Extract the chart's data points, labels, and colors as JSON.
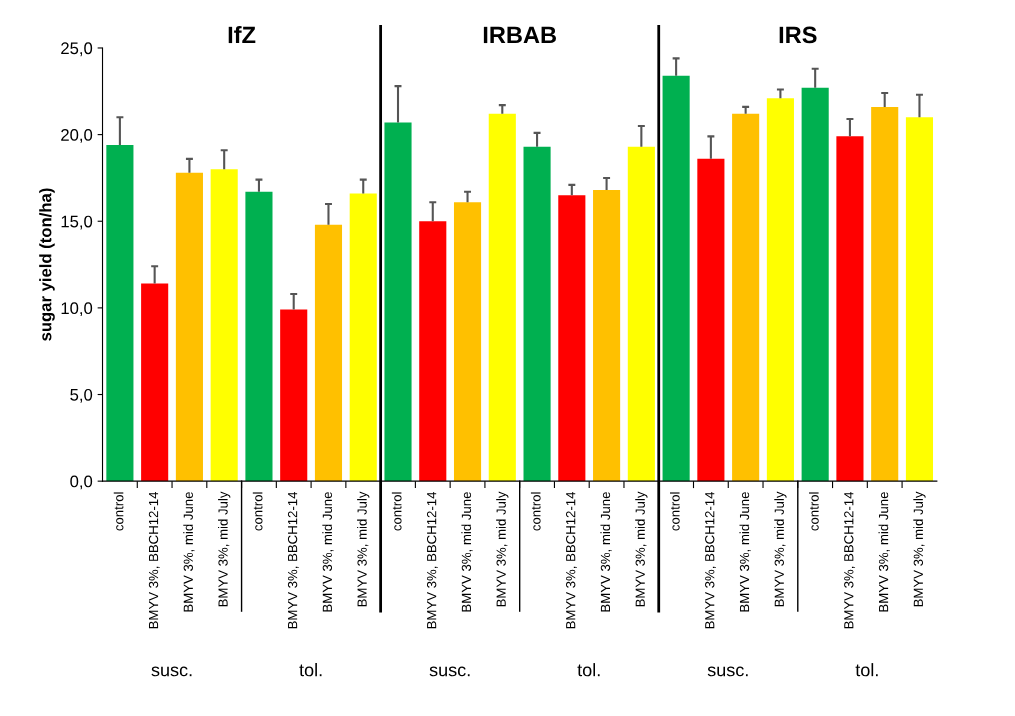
{
  "chart_data": {
    "type": "bar",
    "ylabel": "sugar yield (ton/ha)",
    "categories": [
      "control",
      "BMYV 3%, BBCH12-14",
      "BMYV 3%, mid June",
      "BMYV 3%, mid July",
      "control",
      "BMYV 3%, BBCH12-14",
      "BMYV 3%, mid June",
      "BMYV 3%, mid July",
      "control",
      "BMYV 3%, BBCH12-14",
      "BMYV 3%, mid June",
      "BMYV 3%, mid July",
      "control",
      "BMYV 3%, BBCH12-14",
      "BMYV 3%, mid June",
      "BMYV 3%, mid July",
      "control",
      "BMYV 3%, BBCH12-14",
      "BMYV 3%, mid June",
      "BMYV 3%, mid July",
      "control",
      "BMYV 3%, BBCH12-14",
      "BMYV 3%, mid June",
      "BMYV 3%, mid July"
    ],
    "values": [
      19.4,
      11.4,
      17.8,
      18.0,
      16.7,
      9.9,
      14.8,
      16.6,
      20.7,
      15.0,
      16.1,
      21.2,
      19.3,
      16.5,
      16.8,
      19.3,
      23.4,
      18.6,
      21.2,
      22.1,
      22.7,
      19.9,
      21.6,
      21.0
    ],
    "errors": [
      [
        19.4,
        21.0
      ],
      [
        11.4,
        12.4
      ],
      [
        17.8,
        18.6
      ],
      [
        18.0,
        19.1
      ],
      [
        16.7,
        17.4
      ],
      [
        9.9,
        10.8
      ],
      [
        14.8,
        16.0
      ],
      [
        16.6,
        17.4
      ],
      [
        20.7,
        22.8
      ],
      [
        15.0,
        16.1
      ],
      [
        16.1,
        16.7
      ],
      [
        21.2,
        21.7
      ],
      [
        19.3,
        20.1
      ],
      [
        16.5,
        17.1
      ],
      [
        16.8,
        17.5
      ],
      [
        19.3,
        20.5
      ],
      [
        23.4,
        24.4
      ],
      [
        18.6,
        19.9
      ],
      [
        21.2,
        21.6
      ],
      [
        22.1,
        22.6
      ],
      [
        22.7,
        23.8
      ],
      [
        19.9,
        20.9
      ],
      [
        21.6,
        22.4
      ],
      [
        21.0,
        22.3
      ]
    ],
    "colors": [
      "#00b050",
      "#ff0000",
      "#ffc000",
      "#ffff00",
      "#00b050",
      "#ff0000",
      "#ffc000",
      "#ffff00",
      "#00b050",
      "#ff0000",
      "#ffc000",
      "#ffff00",
      "#00b050",
      "#ff0000",
      "#ffc000",
      "#ffff00",
      "#00b050",
      "#ff0000",
      "#ffc000",
      "#ffff00",
      "#00b050",
      "#ff0000",
      "#ffc000",
      "#ffff00"
    ],
    "ylim": [
      0,
      25
    ],
    "yticks": [
      {
        "value": 0,
        "label": "0,0"
      },
      {
        "value": 5,
        "label": "5,0"
      },
      {
        "value": 10,
        "label": "10,0"
      },
      {
        "value": 15,
        "label": "15,0"
      },
      {
        "value": 20,
        "label": "20,0"
      },
      {
        "value": 25,
        "label": "25,0"
      }
    ],
    "annotations": [
      "IfZ",
      "IRBAB",
      "IRS",
      "susc.",
      "tol.",
      "susc.",
      "tol.",
      "susc.",
      "tol."
    ],
    "grid": false
  }
}
